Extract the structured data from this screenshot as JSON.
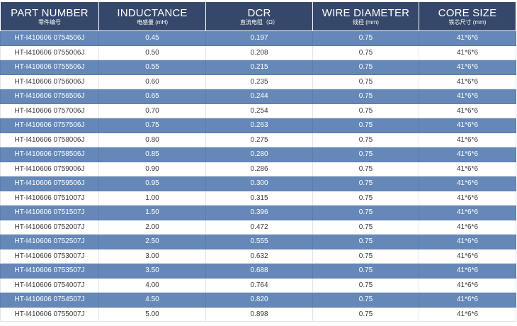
{
  "headers": [
    {
      "en": "PART NUMBER",
      "cn": "零件编号"
    },
    {
      "en": "INDUCTANCE",
      "cn": "电感量 (mH)"
    },
    {
      "en": "DCR",
      "cn": "直流电阻（Ω）"
    },
    {
      "en": "WIRE DIAMETER",
      "cn": "线径 (mm)"
    },
    {
      "en": "CORE SIZE",
      "cn": "铁芯尺寸 (mm)"
    }
  ],
  "rows": [
    [
      "HT-I410606 0754506J",
      "0.45",
      "0.197",
      "0.75",
      "41*6*6"
    ],
    [
      "HT-I410606 0755006J",
      "0.50",
      "0.208",
      "0.75",
      "41*6*6"
    ],
    [
      "HT-I410606 0755506J",
      "0.55",
      "0.215",
      "0.75",
      "41*6*6"
    ],
    [
      "HT-I410606 0756006J",
      "0.60",
      "0.235",
      "0.75",
      "41*6*6"
    ],
    [
      "HT-I410606 0756506J",
      "0.65",
      "0.244",
      "0.75",
      "41*6*6"
    ],
    [
      "HT-I410606 0757006J",
      "0.70",
      "0.254",
      "0.75",
      "41*6*6"
    ],
    [
      "HT-I410606 0757506J",
      "0.75",
      "0.263",
      "0.75",
      "41*6*6"
    ],
    [
      "HT-I410606 0758006J",
      "0.80",
      "0.275",
      "0.75",
      "41*6*6"
    ],
    [
      "HT-I410606 0758506J",
      "0.85",
      "0.280",
      "0.75",
      "41*6*6"
    ],
    [
      "HT-I410606 0759006J",
      "0.90",
      "0.286",
      "0.75",
      "41*6*6"
    ],
    [
      "HT-I410606 0759506J",
      "0.95",
      "0.300",
      "0.75",
      "41*6*6"
    ],
    [
      "HT-I410606 0751007J",
      "1.00",
      "0.315",
      "0.75",
      "41*6*6"
    ],
    [
      "HT-I410606 0751507J",
      "1.50",
      "0.396",
      "0.75",
      "41*6*6"
    ],
    [
      "HT-I410606 0752007J",
      "2.00",
      "0.472",
      "0.75",
      "41*6*6"
    ],
    [
      "HT-I410606 0752507J",
      "2.50",
      "0.555",
      "0.75",
      "41*6*6"
    ],
    [
      "HT-I410606 0753007J",
      "3.00",
      "0.632",
      "0.75",
      "41*6*6"
    ],
    [
      "HT-I410606 0753507J",
      "3.50",
      "0.688",
      "0.75",
      "41*6*6"
    ],
    [
      "HT-I410606 0754007J",
      "4.00",
      "0.764",
      "0.75",
      "41*6*6"
    ],
    [
      "HT-I410606 0754507J",
      "4.50",
      "0.820",
      "0.75",
      "41*6*6"
    ],
    [
      "HT-I410606 0755007J",
      "5.00",
      "0.898",
      "0.75",
      "41*6*6"
    ]
  ],
  "colors": {
    "header": "#35486c",
    "stripe": "#6588b9",
    "plain": "#ffffff"
  }
}
